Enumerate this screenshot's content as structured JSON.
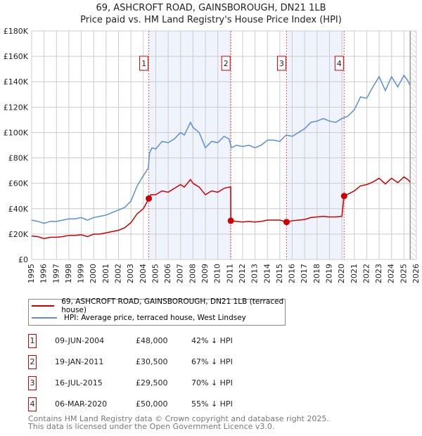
{
  "title": "69, ASHCROFT ROAD, GAINSBOROUGH, DN21 1LB",
  "subtitle": "Price paid vs. HM Land Registry's House Price Index (HPI)",
  "colors": {
    "price": "#cc0000",
    "hpi": "#5b8fd0",
    "shade": "#eef3fc",
    "grid": "#cccccc"
  },
  "chart_data": {
    "type": "line",
    "title": "69, ASHCROFT ROAD, GAINSBOROUGH, DN21 1LB",
    "xlim": [
      1995,
      2026
    ],
    "ylim": [
      0,
      180000
    ],
    "y_ticks": [
      0,
      20000,
      40000,
      60000,
      80000,
      100000,
      120000,
      140000,
      160000,
      180000
    ],
    "y_tick_labels": [
      "£0",
      "£20K",
      "£40K",
      "£60K",
      "£80K",
      "£100K",
      "£120K",
      "£140K",
      "£160K",
      "£180K"
    ],
    "x_ticks": [
      "1995",
      "1996",
      "1997",
      "1998",
      "1999",
      "2000",
      "2001",
      "2002",
      "2003",
      "2004",
      "2005",
      "2006",
      "2007",
      "2008",
      "2009",
      "2010",
      "2011",
      "2012",
      "2013",
      "2014",
      "2015",
      "2016",
      "2017",
      "2018",
      "2019",
      "2020",
      "2021",
      "2022",
      "2023",
      "2024",
      "2025",
      "2026"
    ],
    "grid": true,
    "series": [
      {
        "name": "HPI: Average price, terraced house, West Lindsey",
        "color": "#5b8fd0",
        "x": [
          1995,
          1995.5,
          1996,
          1996.5,
          1997,
          1997.5,
          1998,
          1998.5,
          1999,
          1999.5,
          2000,
          2000.5,
          2001,
          2001.5,
          2002,
          2002.5,
          2003,
          2003.5,
          2004,
          2004.4,
          2004.5,
          2004.7,
          2005,
          2005.5,
          2006,
          2006.5,
          2007,
          2007.3,
          2007.8,
          2008,
          2008.5,
          2009,
          2009.5,
          2010,
          2010.5,
          2010.9,
          2011.1,
          2011.5,
          2012,
          2012.5,
          2013,
          2013.5,
          2014,
          2014.5,
          2015,
          2015.5,
          2016,
          2016.5,
          2017,
          2017.5,
          2018,
          2018.5,
          2019,
          2019.5,
          2020,
          2020.5,
          2021,
          2021.5,
          2022,
          2022.5,
          2023,
          2023.5,
          2024,
          2024.5,
          2025,
          2025.3,
          2025.5
        ],
        "y": [
          31000,
          30000,
          28500,
          30000,
          30000,
          31000,
          32000,
          32000,
          33000,
          31000,
          33000,
          34000,
          35000,
          37000,
          39000,
          41000,
          46000,
          58000,
          66000,
          72000,
          84000,
          88000,
          87000,
          93000,
          92000,
          95000,
          100000,
          98000,
          108000,
          104000,
          100000,
          88000,
          93000,
          92000,
          97000,
          95000,
          88000,
          90000,
          89000,
          90000,
          88000,
          90000,
          94000,
          94000,
          93000,
          98000,
          97000,
          100000,
          103000,
          108000,
          109000,
          111000,
          109000,
          108000,
          111000,
          113000,
          118000,
          128000,
          127000,
          136000,
          144000,
          133000,
          144000,
          136000,
          145000,
          141000,
          137000
        ]
      },
      {
        "name": "69, ASHCROFT ROAD, GAINSBOROUGH, DN21 1LB (terraced house)",
        "color": "#cc0000",
        "x": [
          1995,
          1995.5,
          1996,
          1996.5,
          1997,
          1997.5,
          1998,
          1998.5,
          1999,
          1999.5,
          2000,
          2000.5,
          2001,
          2001.5,
          2002,
          2002.5,
          2003,
          2003.5,
          2004,
          2004.44,
          2004.6,
          2005,
          2005.5,
          2006,
          2006.5,
          2007,
          2007.3,
          2007.8,
          2008,
          2008.5,
          2009,
          2009.5,
          2010,
          2010.5,
          2010.9,
          2011.04,
          2011.05,
          2011.5,
          2012,
          2012.5,
          2013,
          2013.5,
          2014,
          2014.5,
          2015,
          2015.54,
          2016,
          2016.5,
          2017,
          2017.5,
          2018,
          2018.5,
          2019,
          2019.5,
          2020.0,
          2020.17,
          2020.5,
          2021,
          2021.5,
          2022,
          2022.5,
          2023,
          2023.5,
          2024,
          2024.5,
          2025,
          2025.3,
          2025.5
        ],
        "y": [
          18500,
          18000,
          16500,
          17500,
          17500,
          18000,
          19000,
          19000,
          19500,
          18000,
          20000,
          20000,
          21000,
          22000,
          23000,
          25000,
          29000,
          36000,
          40000,
          48000,
          51000,
          51000,
          54000,
          53000,
          56000,
          59000,
          57000,
          63000,
          60000,
          57000,
          51000,
          54000,
          53000,
          56000,
          57000,
          57000,
          30500,
          30000,
          29500,
          30000,
          29500,
          30000,
          31000,
          31000,
          31000,
          29500,
          30500,
          31000,
          31500,
          33000,
          33500,
          34000,
          33500,
          33500,
          34000,
          50000,
          51500,
          54000,
          58000,
          59000,
          61000,
          64000,
          59500,
          64000,
          60500,
          65000,
          63000,
          61000
        ]
      }
    ],
    "sales": [
      {
        "label": "1",
        "x": 2004.44,
        "y": 48000
      },
      {
        "label": "2",
        "x": 2011.05,
        "y": 30500
      },
      {
        "label": "3",
        "x": 2015.54,
        "y": 29500
      },
      {
        "label": "4",
        "x": 2020.18,
        "y": 50000
      }
    ],
    "legend_position": "below"
  },
  "legend": {
    "price": "69, ASHCROFT ROAD, GAINSBOROUGH, DN21 1LB (terraced house)",
    "hpi": "HPI: Average price, terraced house, West Lindsey"
  },
  "table": [
    {
      "num": "1",
      "date": "09-JUN-2004",
      "price": "£48,000",
      "hpi": "42% ↓ HPI"
    },
    {
      "num": "2",
      "date": "19-JAN-2011",
      "price": "£30,500",
      "hpi": "67% ↓ HPI"
    },
    {
      "num": "3",
      "date": "16-JUL-2015",
      "price": "£29,500",
      "hpi": "70% ↓ HPI"
    },
    {
      "num": "4",
      "date": "06-MAR-2020",
      "price": "£50,000",
      "hpi": "55% ↓ HPI"
    }
  ],
  "footer": [
    "Contains HM Land Registry data © Crown copyright and database right 2025.",
    "This data is licensed under the Open Government Licence v3.0."
  ]
}
